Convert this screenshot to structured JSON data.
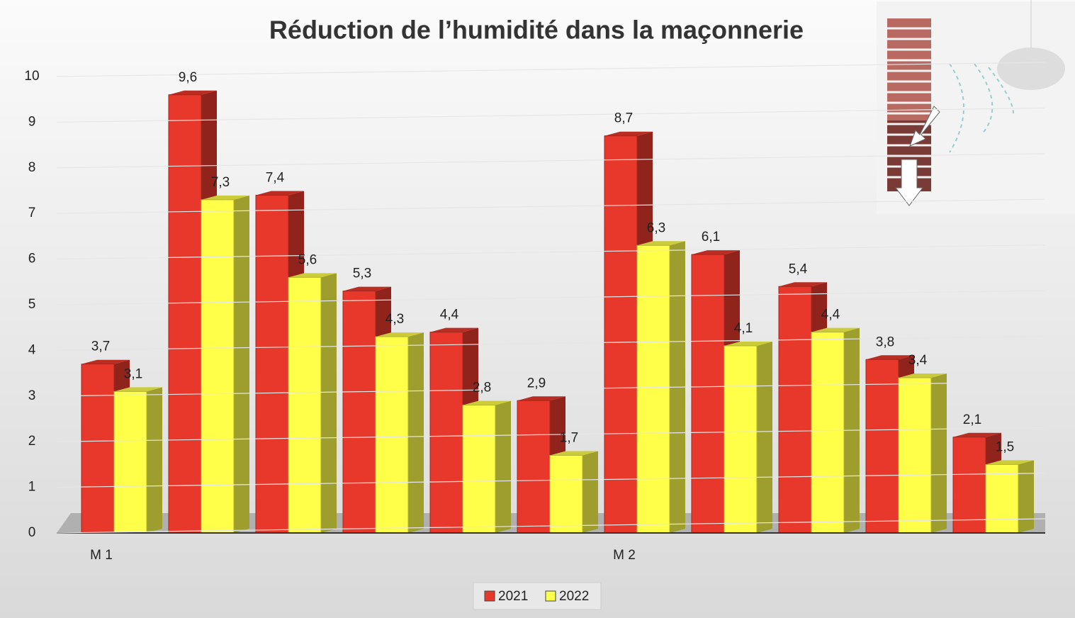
{
  "chart_data": {
    "type": "bar3d",
    "title": "Réduction de l’humidité dans la maçonnerie",
    "categories": [
      "M 1",
      null,
      null,
      null,
      null,
      null,
      "M 2",
      null,
      null,
      null,
      null
    ],
    "series": [
      {
        "name": "2021",
        "color": "#e8382b",
        "values": [
          3.7,
          9.6,
          7.4,
          5.3,
          4.4,
          2.9,
          8.7,
          6.1,
          5.4,
          3.8,
          2.1
        ],
        "value_labels": [
          "3,7",
          "9,6",
          "7,4",
          "5,3",
          "4,4",
          "2,9",
          "8,7",
          "6,1",
          "5,4",
          "3,8",
          "2,1"
        ]
      },
      {
        "name": "2022",
        "color": "#ffff4a",
        "values": [
          3.1,
          7.3,
          5.6,
          4.3,
          2.8,
          1.7,
          6.3,
          4.1,
          4.4,
          3.4,
          1.5
        ],
        "value_labels": [
          "3,1",
          "7,3",
          "5,6",
          "4,3",
          "2,8",
          "1,7",
          "6,3",
          "4,1",
          "4,4",
          "3,4",
          "1,5"
        ]
      }
    ],
    "ylim": [
      0,
      10
    ],
    "yticks": [
      0,
      1,
      2,
      3,
      4,
      5,
      6,
      7,
      8,
      9,
      10
    ],
    "grid": true,
    "legend": "bottom"
  }
}
